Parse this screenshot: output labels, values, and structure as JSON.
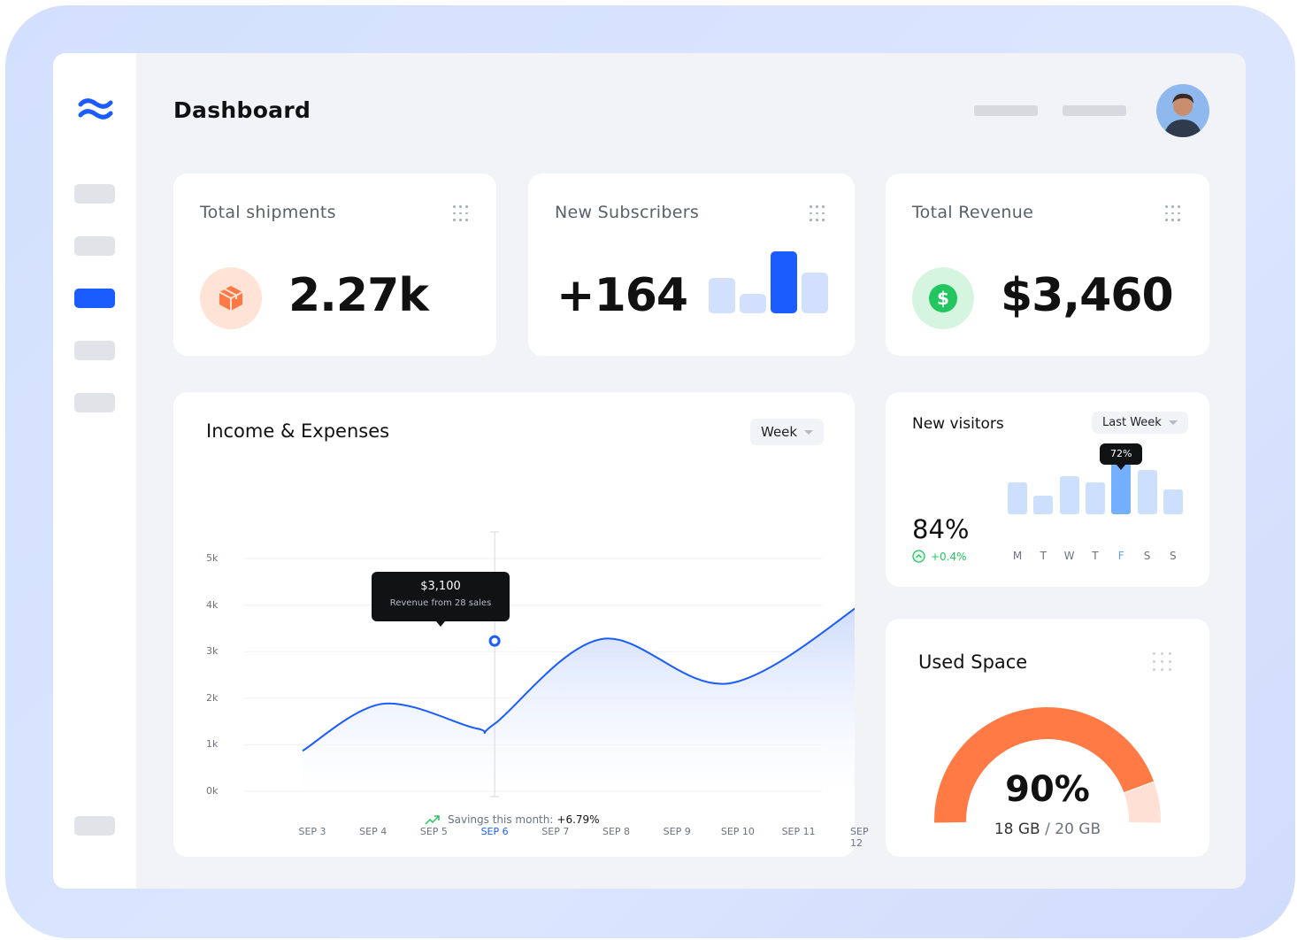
{
  "header": {
    "title": "Dashboard"
  },
  "colors": {
    "accent": "#1a5cff",
    "orange": "#ff7a45",
    "green": "#22c55e"
  },
  "stats": [
    {
      "title": "Total shipments",
      "value": "2.27k",
      "icon": "package-icon"
    },
    {
      "title": "New Subscribers",
      "value": "+164",
      "bars": [
        0.57,
        0.31,
        1.0,
        0.66
      ]
    },
    {
      "title": "Total Revenue",
      "value": "$3,460",
      "icon": "dollar-icon"
    }
  ],
  "income": {
    "title": "Income & Expenses",
    "period": "Week",
    "tooltip": {
      "value": "$3,100",
      "sub": "Revenue from 28 sales"
    },
    "savings_label": "Savings this month:",
    "savings_value": "+6.79%"
  },
  "chart_data": {
    "type": "area",
    "title": "Income & Expenses",
    "yticks": [
      "5k",
      "4k",
      "3k",
      "2k",
      "1k",
      "0k"
    ],
    "ylim": [
      0,
      5
    ],
    "categories": [
      "SEP 3",
      "SEP 4",
      "SEP 5",
      "SEP 6",
      "SEP 7",
      "SEP 8",
      "SEP 9",
      "SEP 10",
      "SEP 11",
      "SEP 12"
    ],
    "highlight": "SEP 6",
    "points": [
      [
        2.84,
        0.87
      ],
      [
        4.16,
        1.88
      ],
      [
        5.7,
        1.35
      ],
      [
        6.0,
        1.45
      ],
      [
        7.76,
        3.27
      ],
      [
        9.87,
        2.32
      ],
      [
        12.24,
        4.22
      ]
    ],
    "marker": [
      6.0,
      3.23
    ]
  },
  "visitors": {
    "title": "New visitors",
    "period": "Last Week",
    "value": "84%",
    "change": "+0.4%",
    "days": [
      "M",
      "T",
      "W",
      "T",
      "F",
      "S",
      "S"
    ],
    "values": [
      0.5,
      0.29,
      0.6,
      0.5,
      0.91,
      0.69,
      0.39
    ],
    "active": 4,
    "tooltip": "72%"
  },
  "space": {
    "title": "Used Space",
    "percent": "90%",
    "used": "18 GB",
    "total": "20 GB",
    "fraction": 0.9
  }
}
